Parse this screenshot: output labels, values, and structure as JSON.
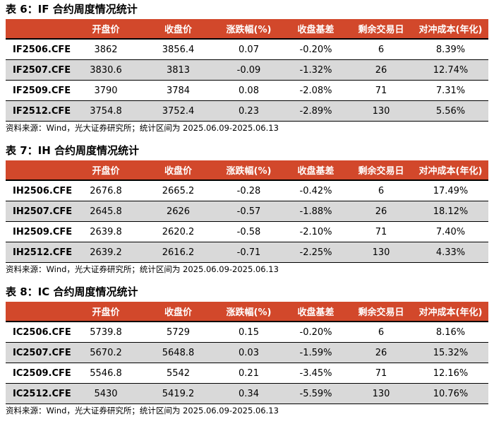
{
  "tables": [
    {
      "title": "表 6：IF 合约周度情况统计",
      "columns": [
        "开盘价",
        "收盘价",
        "涨跌幅(%)",
        "收盘基差",
        "剩余交易日",
        "对冲成本(年化)"
      ],
      "rows": [
        [
          "IF2506.CFE",
          "3862",
          "3856.4",
          "0.07",
          "-0.20%",
          "6",
          "8.39%"
        ],
        [
          "IF2507.CFE",
          "3830.6",
          "3813",
          "-0.09",
          "-1.32%",
          "26",
          "12.74%"
        ],
        [
          "IF2509.CFE",
          "3790",
          "3784",
          "0.08",
          "-2.08%",
          "71",
          "7.31%"
        ],
        [
          "IF2512.CFE",
          "3754.8",
          "3752.4",
          "0.23",
          "-2.89%",
          "130",
          "5.56%"
        ]
      ],
      "source": "资料来源：Wind，光大证券研究所；统计区间为 2025.06.09-2025.06.13"
    },
    {
      "title": "表 7：IH 合约周度情况统计",
      "columns": [
        "开盘价",
        "收盘价",
        "涨跌幅(%)",
        "收盘基差",
        "剩余交易日",
        "对冲成本(年化)"
      ],
      "rows": [
        [
          "IH2506.CFE",
          "2676.8",
          "2665.2",
          "-0.28",
          "-0.42%",
          "6",
          "17.49%"
        ],
        [
          "IH2507.CFE",
          "2645.8",
          "2626",
          "-0.57",
          "-1.88%",
          "26",
          "18.12%"
        ],
        [
          "IH2509.CFE",
          "2639.8",
          "2620.2",
          "-0.58",
          "-2.10%",
          "71",
          "7.40%"
        ],
        [
          "IH2512.CFE",
          "2639.2",
          "2616.2",
          "-0.71",
          "-2.25%",
          "130",
          "4.33%"
        ]
      ],
      "source": "资料来源：Wind，光大证券研究所；统计区间为 2025.06.09-2025.06.13"
    },
    {
      "title": "表 8：IC 合约周度情况统计",
      "columns": [
        "开盘价",
        "收盘价",
        "涨跌幅(%)",
        "收盘基差",
        "剩余交易日",
        "对冲成本(年化)"
      ],
      "rows": [
        [
          "IC2506.CFE",
          "5739.8",
          "5729",
          "0.15",
          "-0.20%",
          "6",
          "8.16%"
        ],
        [
          "IC2507.CFE",
          "5670.2",
          "5648.8",
          "0.03",
          "-1.59%",
          "26",
          "15.32%"
        ],
        [
          "IC2509.CFE",
          "5546.8",
          "5542",
          "0.21",
          "-3.45%",
          "71",
          "12.16%"
        ],
        [
          "IC2512.CFE",
          "5430",
          "5419.2",
          "0.34",
          "-5.59%",
          "130",
          "10.76%"
        ]
      ],
      "source": "资料来源：Wind，光大证券研究所；统计区间为 2025.06.09-2025.06.13"
    }
  ]
}
